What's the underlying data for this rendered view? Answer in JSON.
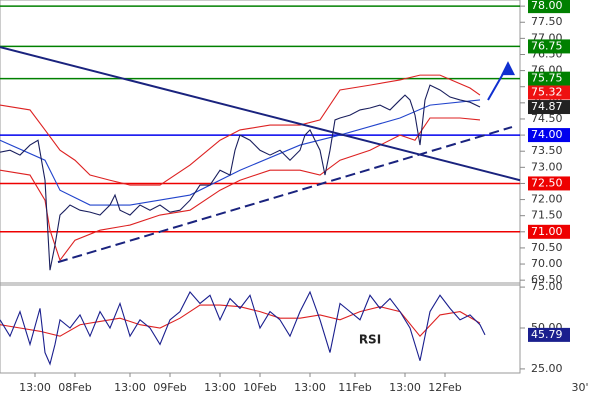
{
  "chart_data": [
    {
      "type": "line",
      "xlim": [
        0,
        104
      ],
      "ylim": [
        69.35,
        78.19
      ],
      "yticks": [
        {
          "value": 78,
          "label": "78.00"
        },
        {
          "value": 77.5,
          "label": "77.50"
        },
        {
          "value": 77,
          "label": "77.00"
        },
        {
          "value": 76.5,
          "label": "76.50"
        },
        {
          "value": 76,
          "label": "76.00"
        },
        {
          "value": 75.5,
          "label": "75.50"
        },
        {
          "value": 75,
          "label": "75.00"
        },
        {
          "value": 74.5,
          "label": "74.50"
        },
        {
          "value": 74,
          "label": "74.00"
        },
        {
          "value": 73.5,
          "label": "73.50"
        },
        {
          "value": 73,
          "label": "73.00"
        },
        {
          "value": 72.5,
          "label": "72.50"
        },
        {
          "value": 72,
          "label": "72.00"
        },
        {
          "value": 71.5,
          "label": "71.50"
        },
        {
          "value": 71,
          "label": "71.00"
        },
        {
          "value": 70.5,
          "label": "70.50"
        },
        {
          "value": 70,
          "label": "70.00"
        },
        {
          "value": 69.5,
          "label": "69.50"
        }
      ],
      "levels": [
        {
          "value": 78,
          "label": "78.00",
          "color": "#008000"
        },
        {
          "value": 76.75,
          "label": "76.75",
          "color": "#008000"
        },
        {
          "value": 75.75,
          "label": "75.75",
          "color": "#008000"
        },
        {
          "value": 74,
          "label": "74.00",
          "color": "#0000ee"
        },
        {
          "value": 72.5,
          "label": "72.50",
          "color": "#ee0000"
        },
        {
          "value": 71,
          "label": "71.00",
          "color": "#ee0000"
        }
      ],
      "markers": [
        {
          "value": 75.32,
          "label": "75.32",
          "color": "#ee1111"
        },
        {
          "value": 74.87,
          "label": "74.87",
          "color": "#222222"
        }
      ],
      "series": [
        {
          "color": "#dd2222",
          "x": [
            0,
            6,
            9,
            12,
            15,
            18,
            22,
            26,
            32,
            38,
            44,
            48,
            54,
            60,
            64,
            68,
            74,
            80,
            84,
            88,
            94,
            96
          ],
          "values": [
            74.93,
            74.78,
            74.16,
            73.53,
            73.22,
            72.76,
            72.6,
            72.45,
            72.45,
            73.07,
            73.84,
            74.16,
            74.31,
            74.31,
            74.47,
            75.4,
            75.55,
            75.71,
            75.86,
            75.86,
            75.46,
            75.24
          ]
        },
        {
          "color": "#dd2222",
          "x": [
            0,
            6,
            9,
            10,
            12,
            15,
            20,
            26,
            32,
            38,
            44,
            48,
            54,
            60,
            64,
            68,
            74,
            80,
            83,
            86,
            92,
            96
          ],
          "values": [
            72.91,
            72.76,
            71.98,
            71.05,
            70.12,
            70.74,
            71.05,
            71.21,
            71.52,
            71.67,
            72.29,
            72.6,
            72.91,
            72.91,
            72.76,
            73.22,
            73.53,
            74.0,
            73.84,
            74.53,
            74.53,
            74.47
          ]
        },
        {
          "color": "#2244cc",
          "x": [
            0,
            9,
            12,
            18,
            26,
            38,
            48,
            60,
            68,
            80,
            86,
            96
          ],
          "values": [
            73.84,
            73.22,
            72.29,
            71.83,
            71.83,
            72.14,
            72.91,
            73.69,
            74.0,
            74.53,
            74.93,
            75.09
          ]
        },
        {
          "color": "#1a1f5e",
          "x": [
            0,
            2,
            4,
            6,
            7.6,
            9,
            10,
            11,
            12,
            13,
            14,
            16,
            18,
            20,
            22,
            23,
            24,
            26,
            28,
            30,
            32,
            34,
            36,
            38,
            40,
            42,
            44,
            46,
            47,
            48,
            50,
            52,
            54,
            56,
            58,
            60,
            61,
            62,
            63,
            64,
            65,
            66,
            67,
            68,
            70,
            72,
            74,
            76,
            78,
            80,
            81,
            82,
            83,
            84,
            85,
            86,
            88,
            90,
            92,
            94,
            96
          ],
          "values": [
            73.47,
            73.53,
            73.38,
            73.69,
            73.84,
            72.6,
            69.81,
            70.59,
            71.52,
            71.67,
            71.83,
            71.67,
            71.61,
            71.52,
            71.83,
            72.14,
            71.67,
            71.52,
            71.83,
            71.67,
            71.83,
            71.61,
            71.67,
            71.98,
            72.45,
            72.45,
            72.91,
            72.76,
            73.53,
            74.0,
            73.84,
            73.53,
            73.38,
            73.53,
            73.22,
            73.53,
            74.0,
            74.16,
            73.84,
            73.53,
            72.76,
            73.53,
            74.47,
            74.53,
            74.62,
            74.78,
            74.84,
            74.93,
            74.78,
            75.09,
            75.24,
            75.09,
            74.62,
            73.69,
            75.09,
            75.55,
            75.4,
            75.18,
            75.09,
            75.02,
            74.87
          ]
        }
      ],
      "trendlines": [
        {
          "x": [
            0,
            104
          ],
          "values": [
            76.73,
            72.6
          ],
          "color": "#1a237e",
          "dashed": false
        },
        {
          "x": [
            11.6,
            102.4
          ],
          "values": [
            70.06,
            74.25
          ],
          "color": "#1a237e",
          "dashed": true
        }
      ],
      "arrow": {
        "x": [
          97.6,
          101.6
        ],
        "values": [
          75.09,
          76.17
        ],
        "color": "#1030d0"
      }
    },
    {
      "type": "line",
      "title": "RSI",
      "xlim": [
        0,
        104
      ],
      "ylim": [
        22.5,
        77.5
      ],
      "yticks": [
        {
          "value": 75,
          "label": "75.00"
        },
        {
          "value": 50,
          "label": "50.00"
        },
        {
          "value": 25,
          "label": "25.00"
        }
      ],
      "xticks": [
        {
          "value": 7,
          "label": "13:00"
        },
        {
          "value": 15,
          "label": "08Feb"
        },
        {
          "value": 26,
          "label": "13:00"
        },
        {
          "value": 34,
          "label": "09Feb"
        },
        {
          "value": 44,
          "label": "13:00"
        },
        {
          "value": 52,
          "label": "10Feb"
        },
        {
          "value": 62,
          "label": "13:00"
        },
        {
          "value": 71,
          "label": "11Feb"
        },
        {
          "value": 81,
          "label": "13:00"
        },
        {
          "value": 89,
          "label": "12Feb"
        }
      ],
      "timeframe": "30'",
      "series": [
        {
          "color": "#dd2222",
          "x": [
            0,
            4,
            8,
            12,
            16,
            20,
            24,
            28,
            32,
            36,
            40,
            44,
            48,
            52,
            56,
            60,
            64,
            68,
            72,
            76,
            80,
            84,
            88,
            92,
            96
          ],
          "values": [
            52,
            50,
            48,
            45,
            52,
            54,
            56,
            52,
            50,
            56,
            64,
            64,
            63,
            60,
            56,
            56,
            58,
            55,
            60,
            63,
            60,
            45,
            58,
            60,
            53
          ]
        },
        {
          "color": "#1a1f8e",
          "x": [
            0,
            2,
            4,
            6,
            8,
            9,
            10,
            11,
            12,
            14,
            16,
            18,
            20,
            22,
            24,
            26,
            28,
            30,
            32,
            34,
            36,
            38,
            40,
            42,
            44,
            46,
            48,
            50,
            52,
            54,
            56,
            58,
            60,
            62,
            64,
            66,
            68,
            70,
            72,
            74,
            76,
            78,
            80,
            82,
            84,
            86,
            88,
            90,
            92,
            94,
            96,
            97
          ],
          "values": [
            55,
            45,
            60,
            40,
            62,
            35,
            28,
            40,
            55,
            50,
            58,
            45,
            60,
            50,
            65,
            45,
            55,
            50,
            40,
            55,
            60,
            72,
            65,
            70,
            55,
            68,
            62,
            70,
            50,
            60,
            55,
            45,
            60,
            72,
            55,
            35,
            65,
            60,
            55,
            70,
            62,
            68,
            60,
            50,
            30,
            60,
            70,
            62,
            55,
            58,
            52,
            45.79
          ]
        }
      ],
      "marker": {
        "value": 45.79,
        "label": "45.79",
        "color": "#1a1f8e"
      }
    }
  ]
}
